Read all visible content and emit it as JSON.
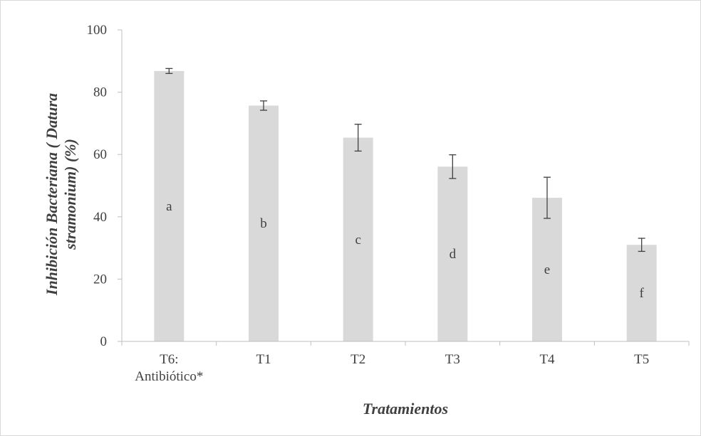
{
  "colors": {
    "bar": "#d9d9d9",
    "axis": "#bfbfbf",
    "text": "#404040",
    "error": "#404040"
  },
  "chart_data": {
    "type": "bar",
    "title": "",
    "xlabel": "Tratamientos",
    "ylabel": [
      "Inhibición Bacteriana ( Datura",
      "stramonium) (%)"
    ],
    "ylim": [
      0,
      100
    ],
    "yticks": [
      0,
      20,
      40,
      60,
      80,
      100
    ],
    "grid": false,
    "legend": "none",
    "categories": [
      [
        "T6:",
        "Antibiótico*"
      ],
      [
        "T1"
      ],
      [
        "T2"
      ],
      [
        "T3"
      ],
      [
        "T4"
      ],
      [
        "T5"
      ]
    ],
    "values": [
      86.8,
      75.7,
      65.4,
      56.1,
      46.1,
      31.0
    ],
    "errors": [
      0.8,
      1.5,
      4.3,
      3.8,
      6.6,
      2.1
    ],
    "data_labels": [
      "a",
      "b",
      "c",
      "d",
      "e",
      "f"
    ]
  }
}
